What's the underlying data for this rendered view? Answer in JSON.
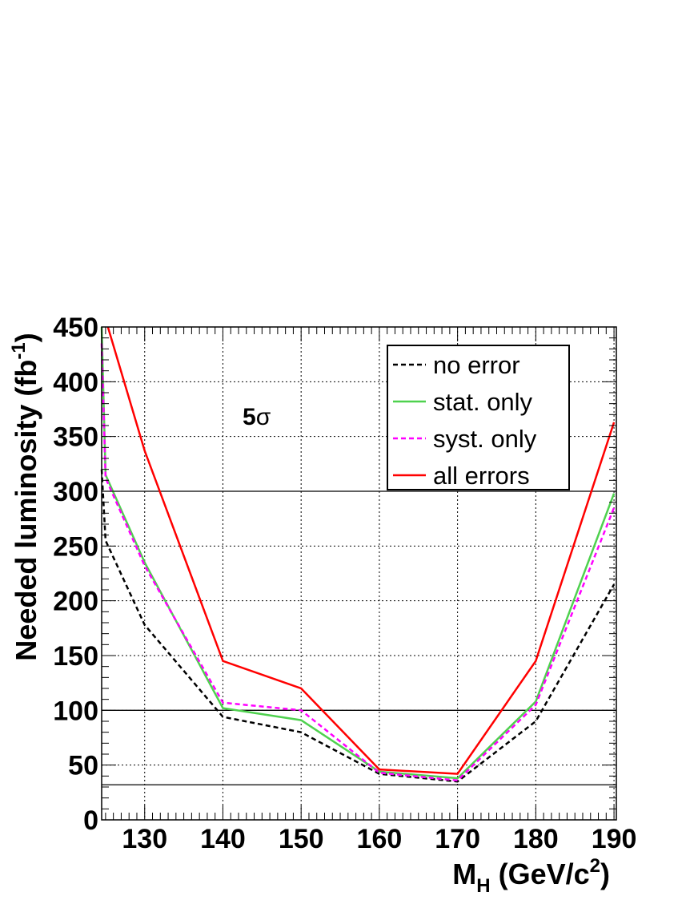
{
  "chart_data": {
    "type": "line",
    "title": "",
    "xlabel_main": "M",
    "xlabel_sub": "H",
    "xlabel_rest": " (GeV/c",
    "xlabel_sup": "2",
    "xlabel_close": ")",
    "ylabel_main": "Needed luminosity (fb",
    "ylabel_sup": "-1",
    "ylabel_close": ")",
    "xlim": [
      124.5,
      190.3
    ],
    "ylim": [
      0,
      450
    ],
    "x_ticks": [
      130,
      140,
      150,
      160,
      170,
      180,
      190
    ],
    "x_tick_labels": [
      "130",
      "140",
      "150",
      "160",
      "170",
      "180",
      "190"
    ],
    "y_ticks": [
      0,
      50,
      100,
      150,
      200,
      250,
      300,
      350,
      400,
      450
    ],
    "y_tick_labels": [
      "0",
      "50",
      "100",
      "150",
      "200",
      "250",
      "300",
      "350",
      "400",
      "450"
    ],
    "grid": true,
    "reference_lines_y": [
      32,
      100,
      300
    ],
    "annotation": {
      "number": "5",
      "symbol": "σ"
    },
    "legend_position": "top-right",
    "series": [
      {
        "name": "no error",
        "color": "#000000",
        "style": "dashed",
        "x": [
          124.5,
          125,
          130,
          140,
          150,
          160,
          170,
          180,
          190
        ],
        "y": [
          320,
          255,
          178,
          94,
          80,
          42,
          35,
          90,
          215
        ]
      },
      {
        "name": "stat. only",
        "color": "#4fd14f",
        "style": "solid",
        "x": [
          124.5,
          125,
          130,
          140,
          150,
          160,
          170,
          180,
          190
        ],
        "y": [
          450,
          315,
          235,
          102,
          91,
          44,
          38,
          108,
          298
        ]
      },
      {
        "name": "syst. only",
        "color": "#ff00ff",
        "style": "dashed",
        "x": [
          124.5,
          125,
          130,
          140,
          150,
          160,
          170,
          180,
          190
        ],
        "y": [
          435,
          312,
          232,
          107,
          100,
          43,
          36,
          105,
          285
        ]
      },
      {
        "name": "all errors",
        "color": "#ff0000",
        "style": "solid",
        "x": [
          125.3,
          130,
          140,
          150,
          160,
          170,
          180,
          190
        ],
        "y": [
          450,
          337,
          145,
          120,
          46,
          42,
          145,
          363
        ]
      }
    ]
  }
}
